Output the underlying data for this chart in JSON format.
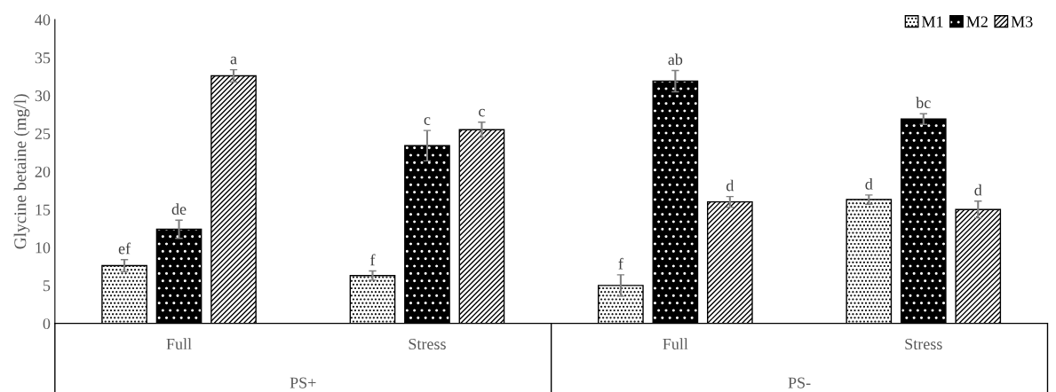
{
  "chart_data": {
    "type": "bar",
    "ylabel": "Glycine betaine (mg/l)",
    "categories": [
      "Full",
      "Stress",
      "Full",
      "Stress"
    ],
    "series": [
      {
        "name": "M1",
        "color": "#000000",
        "values": [
          7.6,
          6.3,
          5.0,
          16.3
        ],
        "errors": [
          0.8,
          0.6,
          1.4,
          0.6
        ],
        "value_labels": [
          "ef",
          "f",
          "f",
          "d"
        ]
      },
      {
        "name": "M2",
        "color": "#000000",
        "values": [
          12.4,
          23.4,
          31.9,
          26.9
        ],
        "errors": [
          1.2,
          2.0,
          1.4,
          0.7
        ],
        "value_labels": [
          "de",
          "c",
          "ab",
          "bc"
        ]
      },
      {
        "name": "M3",
        "color": "#000000",
        "values": [
          32.6,
          25.5,
          16.0,
          15.0
        ],
        "errors": [
          0.8,
          1.0,
          0.7,
          1.1
        ],
        "value_labels": [
          "a",
          "c",
          "d",
          "d"
        ]
      }
    ],
    "annotations": [
      "PS+",
      "PS-"
    ],
    "ylim": [
      0,
      40
    ],
    "yticks": [
      0,
      5,
      10,
      15,
      20,
      25,
      30,
      35,
      40
    ],
    "grid": false,
    "legend": "top right"
  }
}
